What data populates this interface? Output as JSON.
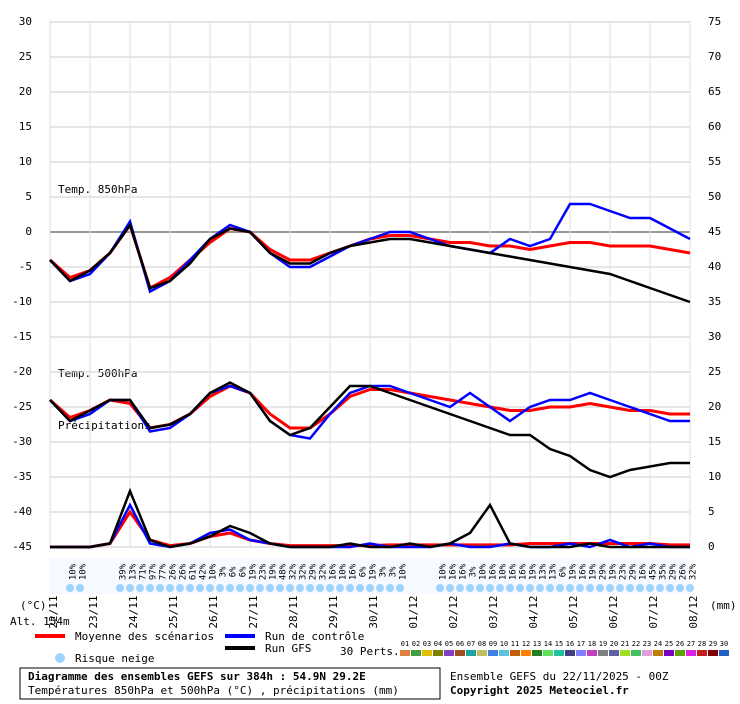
{
  "chart_data": {
    "type": "line",
    "title": "Diagramme des ensembles GEFS sur 384h : 54.9N 29.2E",
    "subtitle": "Températures 850hPa et 500hPa (°C) , précipitations (mm)",
    "run_label": "Ensemble GEFS du 22/11/2025 - 00Z",
    "copyright": "Copyright 2025 Meteociel.fr",
    "annotations": [
      "Temp. 850hPa",
      "Temp. 500hPa",
      "Précipitations"
    ],
    "y_label": "(°C)",
    "y2_label": "(mm)",
    "altitude": "Alt. 154m",
    "grid": true,
    "xlim": [
      0,
      384
    ],
    "xticks": [
      {
        "value": 0,
        "label": "22/11"
      },
      {
        "value": 24,
        "label": "23/11"
      },
      {
        "value": 48,
        "label": "24/11"
      },
      {
        "value": 72,
        "label": "25/11"
      },
      {
        "value": 96,
        "label": "26/11"
      },
      {
        "value": 120,
        "label": "27/11"
      },
      {
        "value": 144,
        "label": "28/11"
      },
      {
        "value": 168,
        "label": "29/11"
      },
      {
        "value": 192,
        "label": "30/11"
      },
      {
        "value": 216,
        "label": "01/12"
      },
      {
        "value": 240,
        "label": "02/12"
      },
      {
        "value": 264,
        "label": "03/12"
      },
      {
        "value": 288,
        "label": "04/12"
      },
      {
        "value": 312,
        "label": "05/12"
      },
      {
        "value": 336,
        "label": "06/12"
      },
      {
        "value": 360,
        "label": "07/12"
      },
      {
        "value": 384,
        "label": "08/12"
      }
    ],
    "ylim": [
      -45,
      30
    ],
    "yticks": [
      -45,
      -40,
      -35,
      -30,
      -25,
      -20,
      -15,
      -10,
      -5,
      0,
      5,
      10,
      15,
      20,
      25,
      30
    ],
    "y2lim": [
      0,
      75
    ],
    "y2ticks": [
      0,
      5,
      10,
      15,
      20,
      25,
      30,
      35,
      40,
      45,
      50,
      55,
      60,
      65,
      70,
      75
    ],
    "x": [
      0,
      12,
      24,
      36,
      48,
      60,
      72,
      84,
      96,
      108,
      120,
      132,
      144,
      156,
      168,
      180,
      192,
      204,
      216,
      228,
      240,
      252,
      264,
      276,
      288,
      300,
      312,
      324,
      336,
      348,
      360,
      372,
      384
    ],
    "series": [
      {
        "name": "Moyenne des scénarios",
        "color": "#ff0000",
        "t850": [
          -4,
          -6.5,
          -5.5,
          -3,
          1,
          -8,
          -6.5,
          -4,
          -1.5,
          0.5,
          0,
          -2.5,
          -4,
          -4,
          -3,
          -2,
          -1,
          -0.5,
          -0.5,
          -1,
          -1.5,
          -1.5,
          -2,
          -2,
          -2.5,
          -2,
          -1.5,
          -1.5,
          -2,
          -2,
          -2,
          -2.5,
          -3
        ],
        "t500": [
          -24,
          -26.5,
          -25.5,
          -24,
          -24.5,
          -28,
          -27.5,
          -26,
          -23.5,
          -22,
          -23,
          -26,
          -28,
          -28,
          -26,
          -23.5,
          -22.5,
          -22.5,
          -23,
          -23.5,
          -24,
          -24.5,
          -25,
          -25.5,
          -25.5,
          -25,
          -25,
          -24.5,
          -25,
          -25.5,
          -25.5,
          -26,
          -26
        ],
        "precip": [
          0,
          0,
          0,
          0.5,
          5,
          1,
          0.2,
          0.5,
          1.5,
          2,
          1,
          0.5,
          0.2,
          0.2,
          0.2,
          0.2,
          0.2,
          0.3,
          0.3,
          0.3,
          0.3,
          0.3,
          0.3,
          0.3,
          0.5,
          0.5,
          0.5,
          0.5,
          0.5,
          0.5,
          0.5,
          0.3,
          0.3
        ],
        "axis_precip": "y2"
      },
      {
        "name": "Run de contrôle",
        "color": "#0000ff",
        "t850": [
          -4,
          -7,
          -6,
          -3,
          1.5,
          -8.5,
          -7,
          -4,
          -1,
          1,
          0,
          -3,
          -5,
          -5,
          -3.5,
          -2,
          -1,
          0,
          0,
          -1,
          -2,
          -2.5,
          -3,
          -1,
          -2,
          -1,
          4,
          4,
          3,
          2,
          2,
          0.5,
          -1
        ],
        "t500": [
          -24,
          -27,
          -26,
          -24,
          -24,
          -28.5,
          -28,
          -26,
          -23,
          -22,
          -23,
          -27,
          -29,
          -29.5,
          -26,
          -23,
          -22,
          -22,
          -23,
          -24,
          -25,
          -23,
          -25,
          -27,
          -25,
          -24,
          -24,
          -23,
          -24,
          -25,
          -26,
          -27,
          -27
        ],
        "precip": [
          0,
          0,
          0,
          0.5,
          6,
          0.5,
          0,
          0.5,
          2,
          2.5,
          1,
          0.5,
          0,
          0,
          0,
          0,
          0.5,
          0,
          0,
          0,
          0.5,
          0,
          0,
          0.5,
          0,
          0,
          0.5,
          0,
          1,
          0,
          0.5,
          0,
          0
        ],
        "axis_precip": "y2"
      },
      {
        "name": "Run GFS",
        "color": "#000000",
        "t850": [
          -4,
          -7,
          -5.5,
          -3,
          1,
          -8,
          -7,
          -4.5,
          -1,
          0.5,
          0,
          -3,
          -4.5,
          -4.5,
          -3,
          -2,
          -1.5,
          -1,
          -1,
          -1.5,
          -2,
          -2.5,
          -3,
          -3.5,
          -4,
          -4.5,
          -5,
          -5.5,
          -6,
          -7,
          -8,
          -9,
          -10
        ],
        "t500": [
          -24,
          -27,
          -25.5,
          -24,
          -24,
          -28,
          -27.5,
          -26,
          -23,
          -21.5,
          -23,
          -27,
          -29,
          -28,
          -25,
          -22,
          -22,
          -23,
          -24,
          -25,
          -26,
          -27,
          -28,
          -29,
          -29,
          -31,
          -32,
          -34,
          -35,
          -34,
          -33.5,
          -33,
          -33
        ],
        "precip": [
          0,
          0,
          0,
          0.5,
          8,
          1,
          0,
          0.5,
          1.5,
          3,
          2,
          0.5,
          0,
          0,
          0,
          0.5,
          0,
          0,
          0.5,
          0,
          0.5,
          2,
          6,
          0.5,
          0,
          0,
          0,
          0.5,
          0,
          0,
          0,
          0,
          0
        ],
        "axis_precip": "y2"
      }
    ],
    "snow_risk": {
      "label": "Risque neige",
      "x": [
        12,
        18,
        42,
        48,
        54,
        60,
        66,
        72,
        78,
        84,
        90,
        96,
        102,
        108,
        114,
        120,
        126,
        132,
        138,
        144,
        150,
        156,
        162,
        168,
        174,
        180,
        186,
        192,
        198,
        204,
        210,
        234,
        240,
        246,
        252,
        258,
        264,
        270,
        276,
        282,
        288,
        294,
        300,
        306,
        312,
        318,
        324,
        330,
        336,
        342,
        348,
        354,
        360,
        366,
        372,
        378,
        384
      ],
      "values": [
        10,
        10,
        39,
        13,
        71,
        97,
        77,
        26,
        26,
        61,
        42,
        10,
        3,
        6,
        6,
        19,
        23,
        19,
        48,
        32,
        32,
        29,
        32,
        16,
        10,
        16,
        6,
        19,
        3,
        3,
        10,
        10,
        16,
        16,
        3,
        10,
        16,
        10,
        16,
        16,
        19,
        13,
        13,
        6,
        19,
        16,
        19,
        29,
        19,
        23,
        29,
        16,
        45,
        35,
        29,
        26,
        32
      ],
      "value_labels": [
        "10%",
        "10%",
        "39%",
        "13%",
        "71%",
        "97%",
        "77%",
        "26%",
        "26%",
        "61%",
        "42%",
        "10%",
        "3%",
        "6%",
        "6%",
        "19%",
        "23%",
        "19%",
        "48%",
        "32%",
        "32%",
        "29%",
        "32%",
        "16%",
        "10%",
        "16%",
        "6%",
        "19%",
        "3%",
        "3%",
        "10%",
        "10%",
        "16%",
        "16%",
        "3%",
        "10%",
        "16%",
        "10%",
        "16%",
        "16%",
        "19%",
        "13%",
        "13%",
        "6%",
        "19%",
        "16%",
        "19%",
        "29%",
        "19%",
        "23%",
        "29%",
        "16%",
        "45%",
        "35%",
        "29%",
        "26%",
        "32%"
      ]
    },
    "perturbations": {
      "label": "30 Perts.",
      "names": [
        "01",
        "02",
        "03",
        "04",
        "05",
        "06",
        "07",
        "08",
        "09",
        "10",
        "11",
        "12",
        "13",
        "14",
        "15",
        "16",
        "17",
        "18",
        "19",
        "20",
        "21",
        "22",
        "23",
        "24",
        "25",
        "26",
        "27",
        "28",
        "29",
        "30"
      ],
      "colors": [
        "#e08040",
        "#40a040",
        "#e0c000",
        "#808000",
        "#8040c0",
        "#a05020",
        "#20a0a0",
        "#c0c060",
        "#4080e0",
        "#60c0e0",
        "#c06000",
        "#ff8000",
        "#208020",
        "#60e060",
        "#20c0a0",
        "#404080",
        "#8080ff",
        "#c040c0",
        "#808080",
        "#6060a0",
        "#a0e020",
        "#40c060",
        "#e0a0e0",
        "#c08000",
        "#8000c0",
        "#60a000",
        "#e020e0",
        "#c02020",
        "#800000",
        "#2060c0"
      ]
    }
  }
}
